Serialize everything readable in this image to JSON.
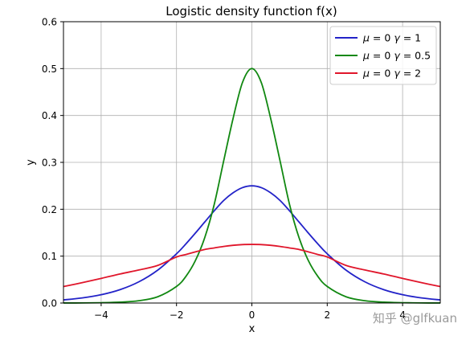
{
  "chart_data": {
    "type": "line",
    "title": "Logistic density function f(x)",
    "xlabel": "x",
    "ylabel": "y",
    "xlim": [
      -5,
      5
    ],
    "ylim": [
      0,
      0.6
    ],
    "xticks": [
      -4,
      -2,
      0,
      2,
      4
    ],
    "xtick_labels": [
      "−4",
      "−2",
      "0",
      "2",
      "4"
    ],
    "yticks": [
      0.0,
      0.1,
      0.2,
      0.3,
      0.4,
      0.5,
      0.6
    ],
    "ytick_labels": [
      "0.0",
      "0.1",
      "0.2",
      "0.3",
      "0.4",
      "0.5",
      "0.6"
    ],
    "grid": true,
    "legend_position": "top-right",
    "x": [
      -5,
      -4.5,
      -4,
      -3.5,
      -3,
      -2.5,
      -2,
      -1.75,
      -1.5,
      -1.25,
      -1,
      -0.75,
      -0.5,
      -0.25,
      0,
      0.25,
      0.5,
      0.75,
      1,
      1.25,
      1.5,
      1.75,
      2,
      2.5,
      3,
      3.5,
      4,
      4.5,
      5
    ],
    "series": [
      {
        "name": "μ = 0 γ = 1",
        "color": "#2323c8",
        "values": [
          0.0066,
          0.0109,
          0.0177,
          0.0285,
          0.0452,
          0.0701,
          0.105,
          0.1262,
          0.1491,
          0.1729,
          0.1966,
          0.2186,
          0.235,
          0.2461,
          0.25,
          0.2461,
          0.235,
          0.2186,
          0.1966,
          0.1729,
          0.1491,
          0.1262,
          0.105,
          0.0701,
          0.0452,
          0.0285,
          0.0177,
          0.0109,
          0.0066
        ]
      },
      {
        "name": "μ = 0 γ = 0.5",
        "color": "#118811",
        "values": [
          0.0001,
          0.0002,
          0.0007,
          0.0018,
          0.0049,
          0.0133,
          0.0353,
          0.0569,
          0.0904,
          0.1397,
          0.21,
          0.3024,
          0.3932,
          0.4702,
          0.5,
          0.4702,
          0.3932,
          0.3024,
          0.21,
          0.1397,
          0.0904,
          0.0569,
          0.0353,
          0.0133,
          0.0049,
          0.0018,
          0.0007,
          0.0002,
          0.0001
        ]
      },
      {
        "name": "μ = 0 γ = 2",
        "color": "#e0162b",
        "values": [
          0.0351,
          0.0435,
          0.0525,
          0.0619,
          0.0705,
          0.0801,
          0.0983,
          0.1036,
          0.1091,
          0.1143,
          0.1175,
          0.1207,
          0.1231,
          0.1246,
          0.125,
          0.1246,
          0.1231,
          0.1207,
          0.1175,
          0.1143,
          0.1091,
          0.1036,
          0.0983,
          0.0801,
          0.0705,
          0.0619,
          0.0525,
          0.0435,
          0.0351
        ]
      }
    ],
    "legend": [
      {
        "mu_symbol": "μ",
        "eq1": " = 0 ",
        "gamma_symbol": "γ",
        "eq2": " = 1"
      },
      {
        "mu_symbol": "μ",
        "eq1": " = 0 ",
        "gamma_symbol": "γ",
        "eq2": " = 0.5"
      },
      {
        "mu_symbol": "μ",
        "eq1": " = 0 ",
        "gamma_symbol": "γ",
        "eq2": " = 2"
      }
    ]
  },
  "watermark": "知乎 @glfkuan"
}
